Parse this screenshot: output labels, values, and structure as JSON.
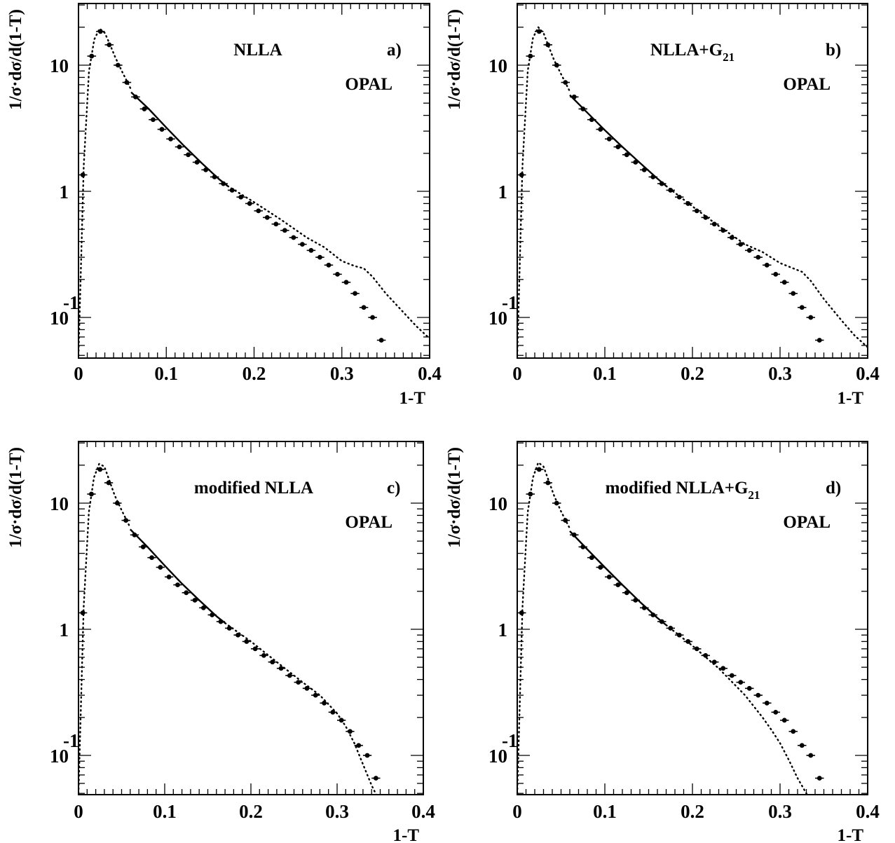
{
  "chart_data": [
    {
      "type": "scatter",
      "panel": "a)",
      "title_parts": [
        "NLLA"
      ],
      "subscript": "",
      "experiment": "OPAL",
      "xlabel": "1-T",
      "ylabel": "1/σ·dσ/d(1-T)",
      "xlim": [
        0,
        0.4
      ],
      "ylim": [
        0.05,
        25
      ],
      "yscale": "log",
      "xticks": [
        "0",
        "0.1",
        "0.2",
        "0.3",
        "0.4"
      ],
      "yticks": [
        "10",
        "1",
        "10"
      ],
      "ytick_exp": "-1",
      "data_points": {
        "x": [
          0.005,
          0.015,
          0.025,
          0.035,
          0.045,
          0.055,
          0.065,
          0.075,
          0.085,
          0.095,
          0.105,
          0.115,
          0.125,
          0.135,
          0.145,
          0.155,
          0.165,
          0.175,
          0.185,
          0.195,
          0.205,
          0.215,
          0.225,
          0.235,
          0.245,
          0.255,
          0.265,
          0.275,
          0.285,
          0.295,
          0.305,
          0.315,
          0.325,
          0.335,
          0.345
        ],
        "y": [
          1.35,
          11.8,
          18.5,
          14.5,
          10.0,
          7.3,
          5.6,
          4.5,
          3.7,
          3.1,
          2.6,
          2.25,
          1.95,
          1.7,
          1.48,
          1.3,
          1.15,
          1.02,
          0.9,
          0.8,
          0.7,
          0.62,
          0.55,
          0.49,
          0.43,
          0.38,
          0.34,
          0.3,
          0.26,
          0.22,
          0.19,
          0.155,
          0.12,
          0.1,
          0.066
        ]
      },
      "fit_in_range": {
        "x": [
          0.06,
          0.08,
          0.1,
          0.12,
          0.14,
          0.16,
          0.17
        ],
        "y": [
          6.1,
          4.5,
          3.2,
          2.3,
          1.68,
          1.25,
          1.1
        ]
      },
      "fit_extrapolated": {
        "x": [
          0.0,
          0.006,
          0.012,
          0.018,
          0.024,
          0.03,
          0.036,
          0.042,
          0.05,
          0.06,
          0.17,
          0.2,
          0.23,
          0.26,
          0.28,
          0.3,
          0.315,
          0.325,
          0.335,
          0.35,
          0.37,
          0.385,
          0.4
        ],
        "y": [
          0.05,
          1.6,
          9.0,
          16.0,
          19.5,
          18.0,
          14.5,
          11.5,
          8.8,
          6.4,
          1.1,
          0.82,
          0.6,
          0.43,
          0.36,
          0.28,
          0.255,
          0.245,
          0.21,
          0.155,
          0.11,
          0.085,
          0.068
        ]
      }
    },
    {
      "type": "scatter",
      "panel": "b)",
      "title_parts": [
        "NLLA+G"
      ],
      "subscript": "21",
      "experiment": "OPAL",
      "xlabel": "1-T",
      "ylabel": "1/σ·dσ/d(1-T)",
      "xlim": [
        0,
        0.4
      ],
      "ylim": [
        0.05,
        25
      ],
      "yscale": "log",
      "xticks": [
        "0",
        "0.1",
        "0.2",
        "0.3",
        "0.4"
      ],
      "yticks": [
        "10",
        "1",
        "10"
      ],
      "ytick_exp": "-1",
      "data_points": {
        "x": [
          0.005,
          0.015,
          0.025,
          0.035,
          0.045,
          0.055,
          0.065,
          0.075,
          0.085,
          0.095,
          0.105,
          0.115,
          0.125,
          0.135,
          0.145,
          0.155,
          0.165,
          0.175,
          0.185,
          0.195,
          0.205,
          0.215,
          0.225,
          0.235,
          0.245,
          0.255,
          0.265,
          0.275,
          0.285,
          0.295,
          0.305,
          0.315,
          0.325,
          0.335,
          0.345
        ],
        "y": [
          1.35,
          11.8,
          18.5,
          14.5,
          10.0,
          7.3,
          5.6,
          4.5,
          3.7,
          3.1,
          2.6,
          2.25,
          1.95,
          1.7,
          1.48,
          1.3,
          1.15,
          1.02,
          0.9,
          0.8,
          0.7,
          0.62,
          0.55,
          0.49,
          0.43,
          0.38,
          0.34,
          0.3,
          0.26,
          0.22,
          0.19,
          0.155,
          0.12,
          0.1,
          0.066
        ]
      },
      "fit_in_range": {
        "x": [
          0.06,
          0.08,
          0.1,
          0.12,
          0.14,
          0.16,
          0.17
        ],
        "y": [
          5.8,
          4.2,
          3.05,
          2.25,
          1.68,
          1.26,
          1.1
        ]
      },
      "fit_extrapolated": {
        "x": [
          0.0,
          0.006,
          0.012,
          0.018,
          0.024,
          0.03,
          0.036,
          0.042,
          0.05,
          0.06,
          0.17,
          0.2,
          0.23,
          0.26,
          0.28,
          0.3,
          0.315,
          0.325,
          0.335,
          0.35,
          0.37,
          0.385,
          0.4
        ],
        "y": [
          0.05,
          1.6,
          9.0,
          16.5,
          20.0,
          18.0,
          14.0,
          11.0,
          8.5,
          6.2,
          1.1,
          0.76,
          0.53,
          0.38,
          0.33,
          0.27,
          0.245,
          0.23,
          0.195,
          0.14,
          0.095,
          0.072,
          0.058
        ]
      }
    },
    {
      "type": "scatter",
      "panel": "c)",
      "title_parts": [
        "modified NLLA"
      ],
      "subscript": "",
      "experiment": "OPAL",
      "xlabel": "1-T",
      "ylabel": "1/σ·dσ/d(1-T)",
      "xlim": [
        0,
        0.4
      ],
      "ylim": [
        0.05,
        25
      ],
      "yscale": "log",
      "xticks": [
        "0",
        "0.1",
        "0.2",
        "0.3",
        "0.4"
      ],
      "yticks": [
        "10",
        "1",
        "10"
      ],
      "ytick_exp": "-1",
      "data_points": {
        "x": [
          0.005,
          0.015,
          0.025,
          0.035,
          0.045,
          0.055,
          0.065,
          0.075,
          0.085,
          0.095,
          0.105,
          0.115,
          0.125,
          0.135,
          0.145,
          0.155,
          0.165,
          0.175,
          0.185,
          0.195,
          0.205,
          0.215,
          0.225,
          0.235,
          0.245,
          0.255,
          0.265,
          0.275,
          0.285,
          0.295,
          0.305,
          0.315,
          0.325,
          0.335,
          0.345
        ],
        "y": [
          1.35,
          11.8,
          18.5,
          14.5,
          10.0,
          7.3,
          5.6,
          4.5,
          3.7,
          3.1,
          2.6,
          2.25,
          1.95,
          1.7,
          1.48,
          1.3,
          1.15,
          1.02,
          0.9,
          0.8,
          0.7,
          0.62,
          0.55,
          0.49,
          0.43,
          0.38,
          0.34,
          0.3,
          0.26,
          0.22,
          0.19,
          0.155,
          0.12,
          0.1,
          0.066
        ]
      },
      "fit_in_range": {
        "x": [
          0.06,
          0.08,
          0.1,
          0.12,
          0.14,
          0.16,
          0.17
        ],
        "y": [
          6.2,
          4.5,
          3.2,
          2.3,
          1.7,
          1.27,
          1.12
        ]
      },
      "fit_extrapolated": {
        "x": [
          0.0,
          0.006,
          0.012,
          0.018,
          0.024,
          0.03,
          0.036,
          0.042,
          0.05,
          0.06,
          0.17,
          0.2,
          0.23,
          0.26,
          0.28,
          0.3,
          0.31,
          0.32,
          0.33,
          0.34,
          0.35
        ],
        "y": [
          0.05,
          1.5,
          8.5,
          16.0,
          20.5,
          19.5,
          15.0,
          11.5,
          8.8,
          6.4,
          1.12,
          0.8,
          0.55,
          0.38,
          0.3,
          0.215,
          0.17,
          0.125,
          0.085,
          0.058,
          0.042
        ]
      }
    },
    {
      "type": "scatter",
      "panel": "d)",
      "title_parts": [
        "modified NLLA+G"
      ],
      "subscript": "21",
      "experiment": "OPAL",
      "xlabel": "1-T",
      "ylabel": "1/σ·dσ/d(1-T)",
      "xlim": [
        0,
        0.4
      ],
      "ylim": [
        0.05,
        25
      ],
      "yscale": "log",
      "xticks": [
        "0",
        "0.1",
        "0.2",
        "0.3",
        "0.4"
      ],
      "yticks": [
        "10",
        "1",
        "10"
      ],
      "ytick_exp": "-1",
      "data_points": {
        "x": [
          0.005,
          0.015,
          0.025,
          0.035,
          0.045,
          0.055,
          0.065,
          0.075,
          0.085,
          0.095,
          0.105,
          0.115,
          0.125,
          0.135,
          0.145,
          0.155,
          0.165,
          0.175,
          0.185,
          0.195,
          0.205,
          0.215,
          0.225,
          0.235,
          0.245,
          0.255,
          0.265,
          0.275,
          0.285,
          0.295,
          0.305,
          0.315,
          0.325,
          0.335,
          0.345
        ],
        "y": [
          1.35,
          11.8,
          18.5,
          14.5,
          10.0,
          7.3,
          5.6,
          4.5,
          3.7,
          3.1,
          2.6,
          2.25,
          1.95,
          1.7,
          1.48,
          1.3,
          1.15,
          1.02,
          0.9,
          0.8,
          0.7,
          0.62,
          0.55,
          0.49,
          0.43,
          0.38,
          0.34,
          0.3,
          0.26,
          0.22,
          0.19,
          0.155,
          0.12,
          0.1,
          0.066
        ]
      },
      "fit_in_range": {
        "x": [
          0.06,
          0.08,
          0.1,
          0.12,
          0.14,
          0.16,
          0.17
        ],
        "y": [
          6.0,
          4.3,
          3.1,
          2.25,
          1.65,
          1.23,
          1.08
        ]
      },
      "fit_extrapolated": {
        "x": [
          0.0,
          0.006,
          0.012,
          0.018,
          0.024,
          0.03,
          0.036,
          0.042,
          0.05,
          0.06,
          0.17,
          0.2,
          0.23,
          0.26,
          0.28,
          0.29,
          0.3,
          0.31,
          0.32,
          0.33,
          0.335
        ],
        "y": [
          0.05,
          1.5,
          8.5,
          16.0,
          21.0,
          19.5,
          15.0,
          11.5,
          8.6,
          6.3,
          1.08,
          0.74,
          0.49,
          0.3,
          0.2,
          0.16,
          0.125,
          0.092,
          0.066,
          0.05,
          0.043
        ]
      }
    }
  ]
}
